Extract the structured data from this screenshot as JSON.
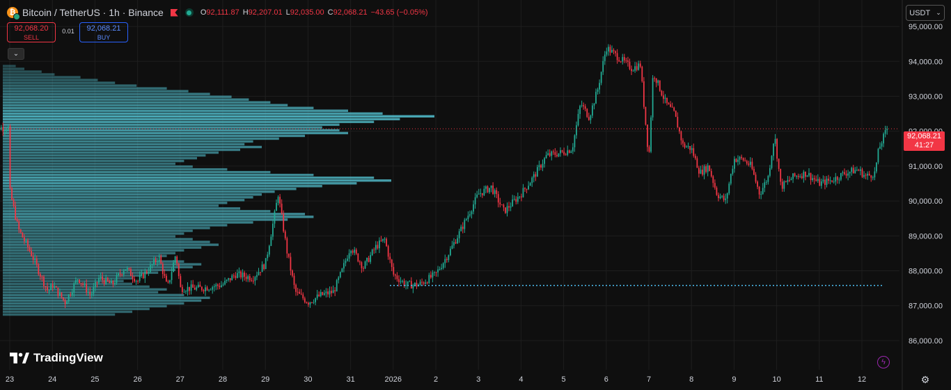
{
  "header": {
    "symbol_title": "Bitcoin / TetherUS · 1h · Binance",
    "ohlc": {
      "o_label": "O",
      "o_value": "92,111.87",
      "h_label": "H",
      "h_value": "92,207.01",
      "l_label": "L",
      "l_value": "92,035.00",
      "c_label": "C",
      "c_value": "92,068.21",
      "change": "−43.65 (−0.05%)"
    }
  },
  "trade": {
    "sell_price": "92,068.20",
    "sell_label": "SELL",
    "spread": "0.01",
    "buy_price": "92,068.21",
    "buy_label": "BUY"
  },
  "currency": "USDT",
  "price_tag": {
    "price": "92,068.21",
    "countdown": "41:27"
  },
  "logo_text": "TradingView",
  "icons": {
    "collapse": "chevron-down-icon",
    "coin": "bitcoin-icon",
    "flag": "flag-icon",
    "live": "live-status-icon",
    "bolt": "lightning-icon",
    "settings": "gear-icon"
  },
  "colors": {
    "background": "#0f0f0f",
    "up": "#22ab94",
    "down": "#f23645",
    "volume_profile": "#4fb6c4",
    "poc_line": "#4fc3f7",
    "grid": "#1e1e1e",
    "buy_accent": "#2962ff"
  },
  "chart_data": {
    "type": "candlestick",
    "y_unit": "USDT",
    "ylim": [
      85700,
      95400
    ],
    "y_ticks": [
      "86,000.00",
      "87,000.00",
      "88,000.00",
      "89,000.00",
      "90,000.00",
      "91,000.00",
      "92,000.00",
      "93,000.00",
      "94,000.00",
      "95,000.00"
    ],
    "y_tick_values": [
      86000,
      87000,
      88000,
      89000,
      90000,
      91000,
      92000,
      93000,
      94000,
      95000
    ],
    "x_ticks": [
      "23",
      "24",
      "25",
      "26",
      "27",
      "28",
      "29",
      "30",
      "31",
      "2026",
      "2",
      "3",
      "4",
      "5",
      "6",
      "7",
      "8",
      "9",
      "10",
      "11",
      "12"
    ],
    "x_range_days": [
      -0.5,
      21.3
    ],
    "grid": true,
    "last_price": 92068.21,
    "poc_price": 87580,
    "price_path": [
      [
        0,
        90300
      ],
      [
        0.2,
        89200
      ],
      [
        0.5,
        88500
      ],
      [
        0.75,
        87800
      ],
      [
        0.9,
        87400
      ],
      [
        1,
        87600
      ],
      [
        1.3,
        87100
      ],
      [
        1.6,
        87800
      ],
      [
        1.9,
        87300
      ],
      [
        2.1,
        87800
      ],
      [
        2.4,
        87600
      ],
      [
        2.7,
        88100
      ],
      [
        3,
        87700
      ],
      [
        3.3,
        88100
      ],
      [
        3.5,
        88400
      ],
      [
        3.7,
        87500
      ],
      [
        3.9,
        88500
      ],
      [
        4,
        87500
      ],
      [
        4.2,
        87500
      ],
      [
        4.5,
        87500
      ],
      [
        5,
        87600
      ],
      [
        5.3,
        87900
      ],
      [
        5.7,
        87800
      ],
      [
        6,
        88200
      ],
      [
        6.2,
        89500
      ],
      [
        6.3,
        90200
      ],
      [
        6.5,
        88600
      ],
      [
        6.7,
        87400
      ],
      [
        7,
        87100
      ],
      [
        7.3,
        87300
      ],
      [
        7.6,
        87400
      ],
      [
        7.8,
        88000
      ],
      [
        8,
        88700
      ],
      [
        8.3,
        88100
      ],
      [
        8.6,
        88700
      ],
      [
        8.8,
        88900
      ],
      [
        9,
        87900
      ],
      [
        9.3,
        87600
      ],
      [
        9.6,
        87600
      ],
      [
        10,
        87900
      ],
      [
        10.3,
        88500
      ],
      [
        10.6,
        89200
      ],
      [
        11,
        90200
      ],
      [
        11.3,
        90400
      ],
      [
        11.6,
        89700
      ],
      [
        12,
        90200
      ],
      [
        12.3,
        90700
      ],
      [
        12.6,
        91300
      ],
      [
        13,
        91400
      ],
      [
        13.2,
        91500
      ],
      [
        13.4,
        92800
      ],
      [
        13.6,
        92400
      ],
      [
        13.8,
        93200
      ],
      [
        14,
        94400
      ],
      [
        14.3,
        94100
      ],
      [
        14.6,
        93800
      ],
      [
        14.8,
        93900
      ],
      [
        15,
        91200
      ],
      [
        15.1,
        93700
      ],
      [
        15.4,
        92800
      ],
      [
        15.6,
        92500
      ],
      [
        15.8,
        91600
      ],
      [
        16,
        91500
      ],
      [
        16.2,
        90800
      ],
      [
        16.4,
        91000
      ],
      [
        16.6,
        90200
      ],
      [
        16.8,
        90000
      ],
      [
        17,
        91200
      ],
      [
        17.2,
        91200
      ],
      [
        17.4,
        91000
      ],
      [
        17.6,
        90200
      ],
      [
        17.8,
        90700
      ],
      [
        17.95,
        91900
      ],
      [
        18.1,
        90400
      ],
      [
        18.4,
        90700
      ],
      [
        18.7,
        90800
      ],
      [
        19,
        90500
      ],
      [
        19.3,
        90600
      ],
      [
        19.6,
        90800
      ],
      [
        19.9,
        90900
      ],
      [
        20.1,
        90700
      ],
      [
        20.3,
        90800
      ],
      [
        20.4,
        91500
      ],
      [
        20.6,
        92100
      ]
    ],
    "volume_profile_price_range": [
      86700,
      93900
    ],
    "volume_profile_relative": [
      0.03,
      0.05,
      0.09,
      0.12,
      0.18,
      0.22,
      0.26,
      0.31,
      0.38,
      0.43,
      0.48,
      0.53,
      0.57,
      0.62,
      0.66,
      0.72,
      0.8,
      0.88,
      1.0,
      0.92,
      0.86,
      0.78,
      0.74,
      0.78,
      0.8,
      0.7,
      0.64,
      0.58,
      0.56,
      0.6,
      0.55,
      0.5,
      0.47,
      0.45,
      0.42,
      0.4,
      0.44,
      0.52,
      0.62,
      0.72,
      0.86,
      0.9,
      0.82,
      0.74,
      0.68,
      0.63,
      0.6,
      0.58,
      0.56,
      0.52,
      0.5,
      0.55,
      0.62,
      0.7,
      0.72,
      0.66,
      0.58,
      0.52,
      0.48,
      0.44,
      0.42,
      0.4,
      0.44,
      0.48,
      0.5,
      0.46,
      0.42,
      0.4,
      0.38,
      0.36,
      0.42,
      0.46,
      0.44,
      0.4,
      0.36,
      0.32,
      0.3,
      0.28,
      0.3,
      0.34,
      0.38,
      0.36,
      0.42,
      0.48,
      0.46,
      0.42,
      0.38,
      0.34,
      0.3,
      0.26
    ]
  }
}
